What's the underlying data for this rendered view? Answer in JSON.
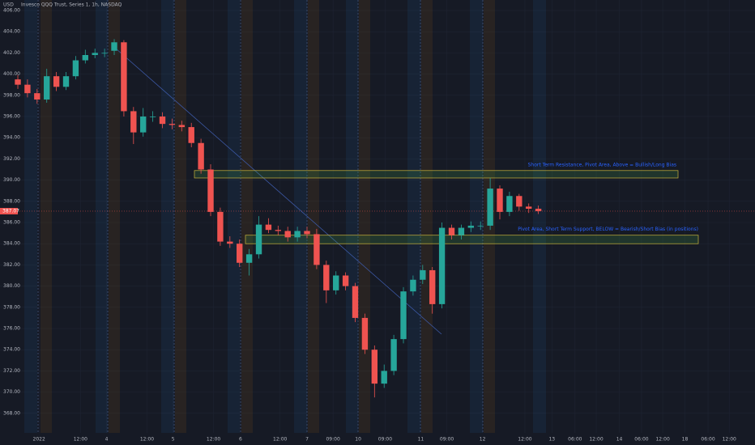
{
  "chart_data": {
    "type": "candlestick",
    "title": "Invesco QQQ Trust, Series 1, 1h, NASDAQ",
    "currency": "USD",
    "x": [
      0,
      1,
      2,
      3,
      4,
      5,
      6,
      7,
      8,
      9,
      10,
      11,
      12,
      13,
      14,
      15,
      16,
      17,
      18,
      19,
      20,
      21,
      22,
      23,
      24,
      25,
      26,
      27,
      28,
      29,
      30,
      31,
      32,
      33,
      34,
      35,
      36,
      37,
      38,
      39,
      40,
      41,
      42,
      43,
      44,
      45,
      46,
      47,
      48,
      49,
      50,
      51,
      52,
      53,
      54
    ],
    "open": [
      399.5,
      399.0,
      398.2,
      397.6,
      399.8,
      398.8,
      399.8,
      401.3,
      401.8,
      402.0,
      402.2,
      403.0,
      396.5,
      394.5,
      396.0,
      396.0,
      395.3,
      395.2,
      395.0,
      393.5,
      391.0,
      387.0,
      384.2,
      384.0,
      382.2,
      383.0,
      385.8,
      385.3,
      385.2,
      384.6,
      385.2,
      384.9,
      382.0,
      379.6,
      381.0,
      380.0,
      377.0,
      374.0,
      370.8,
      372.0,
      375.0,
      379.5,
      380.6,
      381.5,
      378.3,
      385.5,
      384.8,
      385.5,
      385.7,
      385.7,
      389.2,
      387.0,
      388.5,
      387.5,
      387.3
    ],
    "high": [
      399.9,
      399.5,
      398.6,
      400.5,
      400.2,
      400.2,
      401.7,
      402.3,
      402.4,
      402.4,
      403.3,
      403.2,
      396.9,
      396.8,
      396.5,
      396.4,
      395.8,
      395.6,
      395.4,
      393.9,
      391.5,
      387.4,
      384.7,
      384.4,
      383.5,
      386.6,
      386.4,
      385.7,
      385.6,
      385.6,
      385.6,
      385.4,
      382.4,
      381.4,
      381.3,
      380.3,
      377.4,
      374.4,
      372.6,
      375.4,
      379.9,
      381.0,
      382.0,
      381.8,
      386.0,
      385.8,
      385.8,
      386.1,
      386.1,
      390.2,
      389.5,
      388.9,
      388.7,
      387.8,
      387.6
    ],
    "low": [
      398.6,
      397.8,
      397.2,
      397.3,
      398.4,
      398.5,
      399.5,
      401.0,
      401.5,
      401.6,
      401.8,
      396.0,
      393.4,
      394.1,
      395.5,
      394.9,
      394.8,
      394.6,
      393.1,
      390.6,
      386.6,
      383.8,
      383.6,
      381.8,
      381.0,
      382.6,
      385.0,
      384.8,
      384.2,
      384.2,
      384.5,
      381.6,
      378.4,
      379.2,
      379.6,
      376.6,
      373.6,
      369.5,
      370.4,
      371.6,
      374.6,
      379.1,
      380.2,
      377.4,
      377.9,
      384.4,
      384.4,
      385.1,
      385.3,
      385.3,
      386.3,
      386.6,
      387.1,
      386.9,
      386.8
    ],
    "close": [
      399.0,
      398.2,
      397.6,
      399.8,
      398.8,
      399.8,
      401.3,
      401.8,
      402.0,
      402.0,
      403.0,
      396.5,
      394.5,
      396.0,
      396.0,
      395.3,
      395.2,
      395.0,
      393.5,
      391.0,
      387.0,
      384.2,
      384.0,
      382.2,
      383.0,
      385.8,
      385.3,
      385.2,
      384.6,
      385.2,
      384.9,
      382.0,
      379.6,
      381.0,
      380.0,
      377.0,
      374.0,
      370.8,
      372.0,
      375.0,
      379.5,
      380.6,
      381.5,
      378.3,
      385.5,
      384.8,
      385.5,
      385.7,
      385.7,
      389.2,
      387.0,
      388.5,
      387.5,
      387.3,
      387.07
    ],
    "up_color": "#26a69a",
    "down_color": "#ef5350",
    "last_price": {
      "value": 387.07,
      "label": "387.07"
    },
    "zones": [
      {
        "label": "Short Term Resistance, Pivot Area, Above = Bullish/Long Bias",
        "low": 390.2,
        "high": 390.9
      },
      {
        "label": "Pivot Area, Short Term Support, BELOW = Bearish/Short Bias (in positions)",
        "low": 384.0,
        "high": 384.8
      }
    ],
    "xlim": [
      -1.85,
      76.47
    ],
    "ylim": [
      365.01,
      406.99
    ],
    "xticks": [
      {
        "value": 2.2,
        "label": "2022"
      },
      {
        "value": 6.5,
        "label": "12:00"
      },
      {
        "value": 9.2,
        "label": "4"
      },
      {
        "value": 13.4,
        "label": "12:00"
      },
      {
        "value": 16.1,
        "label": "5"
      },
      {
        "value": 20.3,
        "label": "12:00"
      },
      {
        "value": 23.1,
        "label": "6"
      },
      {
        "value": 27.2,
        "label": "12:00"
      },
      {
        "value": 30,
        "label": "7"
      },
      {
        "value": 32.7,
        "label": "09:00"
      },
      {
        "value": 35.3,
        "label": "10"
      },
      {
        "value": 38.1,
        "label": "09:00"
      },
      {
        "value": 41.8,
        "label": "11"
      },
      {
        "value": 44.5,
        "label": "09:00"
      },
      {
        "value": 48.2,
        "label": "12"
      },
      {
        "value": 52.6,
        "label": "12:00"
      },
      {
        "value": 55.4,
        "label": "13"
      },
      {
        "value": 57.8,
        "label": "06:00"
      },
      {
        "value": 60,
        "label": "12:00"
      },
      {
        "value": 62.4,
        "label": "14"
      },
      {
        "value": 64.7,
        "label": "06:00"
      },
      {
        "value": 66.9,
        "label": "12:00"
      },
      {
        "value": 69.2,
        "label": "18"
      },
      {
        "value": 71.6,
        "label": "06:00"
      },
      {
        "value": 73.8,
        "label": "12:00"
      }
    ],
    "yticks": [
      {
        "value": 406,
        "label": "406.00"
      },
      {
        "value": 404,
        "label": "404.00"
      },
      {
        "value": 402,
        "label": "402.00"
      },
      {
        "value": 400,
        "label": "400.00"
      },
      {
        "value": 398,
        "label": "398.00"
      },
      {
        "value": 396,
        "label": "396.00"
      },
      {
        "value": 394,
        "label": "394.00"
      },
      {
        "value": 392,
        "label": "392.00"
      },
      {
        "value": 390,
        "label": "390.00"
      },
      {
        "value": 388,
        "label": "388.00"
      },
      {
        "value": 386,
        "label": "386.00"
      },
      {
        "value": 384,
        "label": "384.00"
      },
      {
        "value": 382,
        "label": "382.00"
      },
      {
        "value": 380,
        "label": "380.00"
      },
      {
        "value": 378,
        "label": "378.00"
      },
      {
        "value": 376,
        "label": "376.00"
      },
      {
        "value": 374,
        "label": "374.00"
      },
      {
        "value": 372,
        "label": "372.00"
      },
      {
        "value": 370,
        "label": "370.00"
      },
      {
        "value": 368,
        "label": "368.00"
      }
    ],
    "grid": true
  }
}
